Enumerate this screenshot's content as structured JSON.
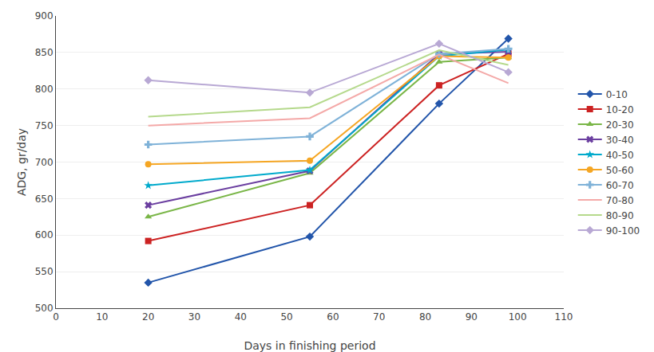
{
  "chart_data": {
    "type": "line",
    "xlabel": "Days in finishing period",
    "ylabel": "ADG, gr/day",
    "x": [
      20,
      55,
      83,
      98
    ],
    "xlim": [
      0,
      110
    ],
    "ylim": [
      500,
      900
    ],
    "xticks": [
      0,
      10,
      20,
      30,
      40,
      50,
      60,
      70,
      80,
      90,
      100,
      110
    ],
    "yticks": [
      500,
      550,
      600,
      650,
      700,
      750,
      800,
      850,
      900
    ],
    "grid": "y",
    "legend": "right",
    "series": [
      {
        "name": "0-10",
        "color": "#2255AA",
        "marker": "diamond",
        "values": [
          535,
          598,
          780,
          869
        ]
      },
      {
        "name": "10-20",
        "color": "#CC2222",
        "marker": "square",
        "values": [
          592,
          641,
          805,
          848
        ]
      },
      {
        "name": "20-30",
        "color": "#7AB648",
        "marker": "triangle-up",
        "values": [
          625,
          685,
          837,
          843
        ]
      },
      {
        "name": "30-40",
        "color": "#6B3FA0",
        "marker": "x",
        "values": [
          641,
          688,
          848,
          851
        ]
      },
      {
        "name": "40-50",
        "color": "#00AACC",
        "marker": "star",
        "values": [
          668,
          689,
          845,
          854
        ]
      },
      {
        "name": "50-60",
        "color": "#F5A623",
        "marker": "circle",
        "values": [
          697,
          702,
          845,
          843
        ]
      },
      {
        "name": "60-70",
        "color": "#7FB2D8",
        "marker": "cross",
        "values": [
          724,
          735,
          848,
          855
        ]
      },
      {
        "name": "70-80",
        "color": "#F4A9A8",
        "marker": "none",
        "values": [
          750,
          760,
          847,
          808
        ]
      },
      {
        "name": "80-90",
        "color": "#B5D98C",
        "marker": "none",
        "values": [
          762,
          775,
          853,
          833
        ]
      },
      {
        "name": "90-100",
        "color": "#B8A8D4",
        "marker": "diamond",
        "values": [
          812,
          795,
          862,
          823
        ]
      }
    ]
  }
}
